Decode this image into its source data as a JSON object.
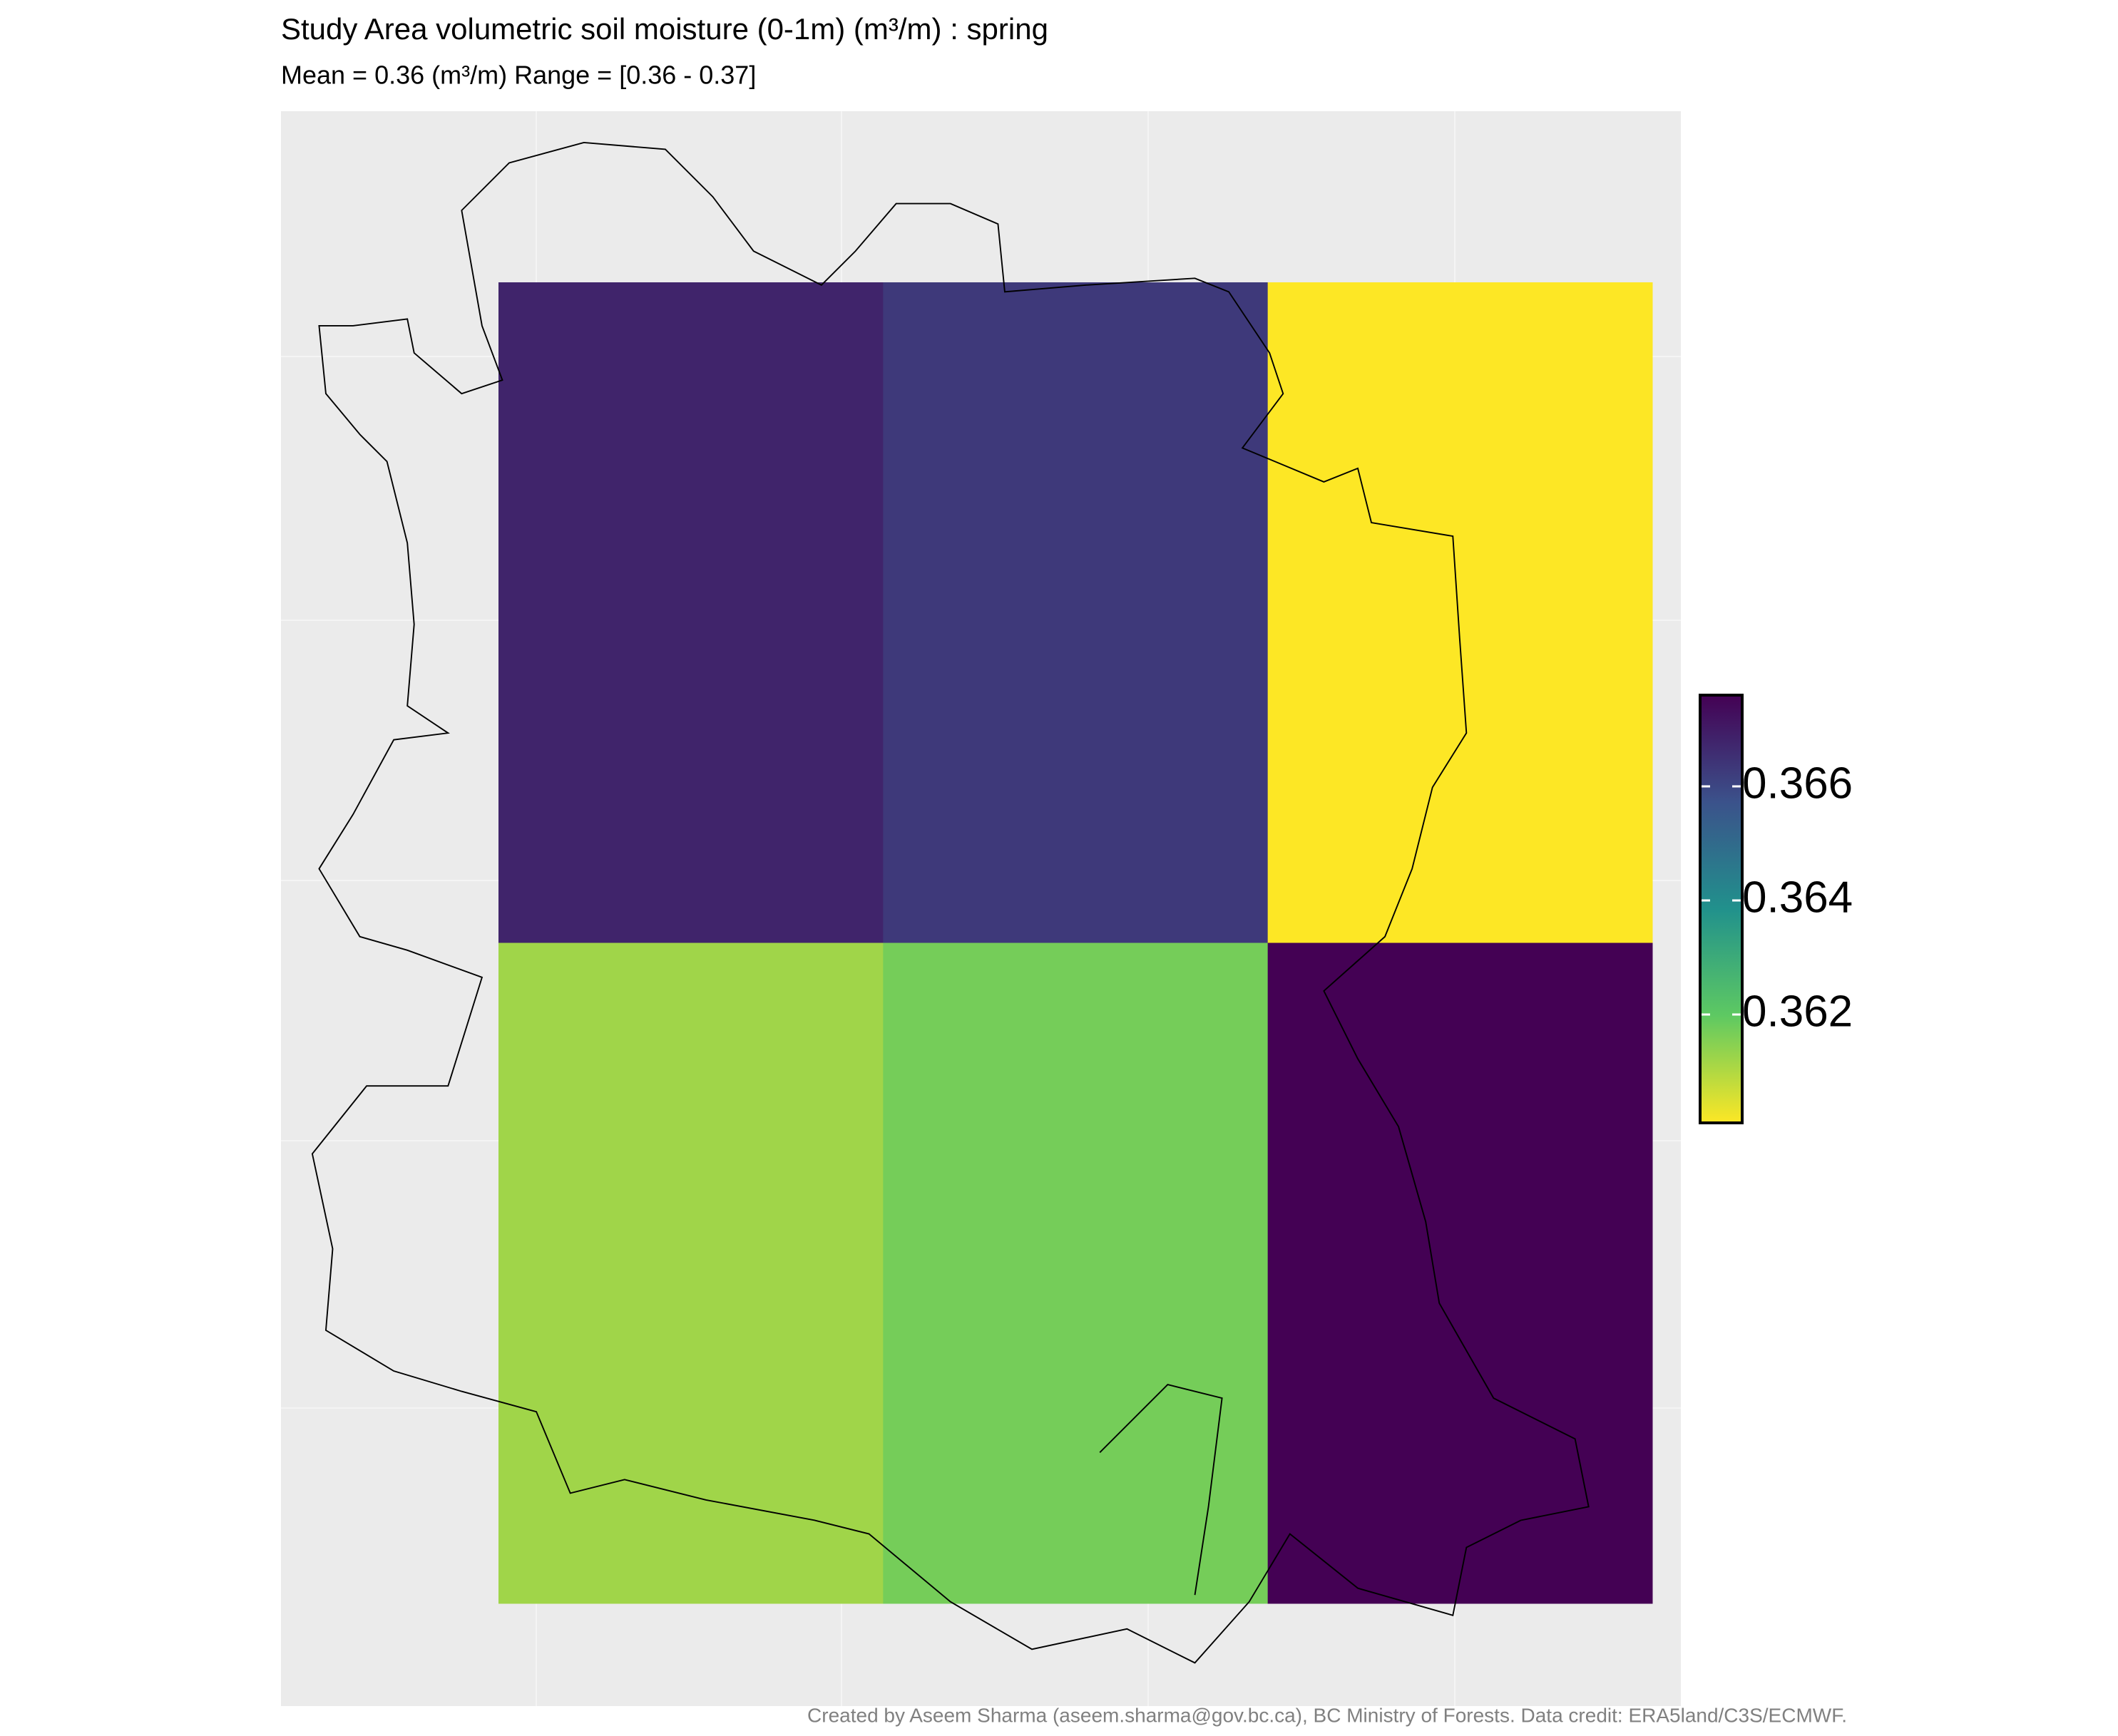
{
  "chart_data": {
    "type": "heatmap",
    "title": "Study Area volumetric soil moisture (0-1m) (m³/m) : spring",
    "subtitle": "Mean = 0.36 (m³/m)  Range = [0.36 - 0.37]",
    "caption": "Created by Aseem Sharma (aseem.sharma@gov.bc.ca), BC Ministry of Forests. Data credit: ERA5land/C3S/ECMWF.",
    "values": [
      [
        0.3668,
        0.3663,
        0.3601
      ],
      [
        0.3612,
        0.3617,
        0.3676
      ]
    ],
    "colorscale": [
      "#fde725",
      "#5ec962",
      "#21918c",
      "#3b528b",
      "#440154"
    ],
    "clim": [
      0.3601,
      0.3676
    ],
    "cticks": [
      0.362,
      0.364,
      0.366
    ]
  }
}
